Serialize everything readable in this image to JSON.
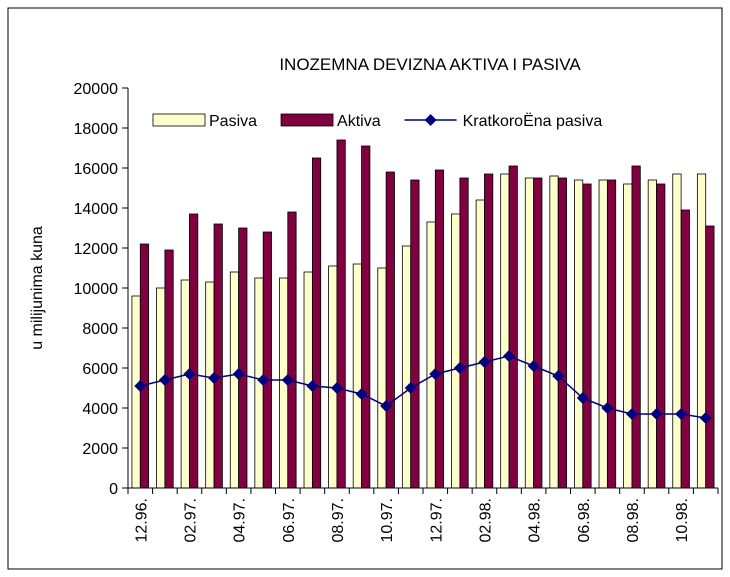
{
  "chart_data": {
    "type": "bar_line",
    "title": "INOZEMNA DEVIZNA AKTIVA I PASIVA",
    "y_label": "u milijunima kuna",
    "categories": [
      "12.96.",
      null,
      "02.97.",
      null,
      "04.97.",
      null,
      "06.97.",
      null,
      "08.97.",
      null,
      "10.97.",
      null,
      "12.97.",
      null,
      "02.98.",
      null,
      "04.98.",
      null,
      "06.98.",
      null,
      "08.98.",
      null,
      "10.98.",
      null
    ],
    "series": [
      {
        "name": "Pasiva",
        "kind": "bar",
        "color": "#ffffcc",
        "values": [
          9600,
          10000,
          10400,
          10300,
          10800,
          10500,
          10500,
          10800,
          11100,
          11200,
          11000,
          12100,
          13300,
          13700,
          14400,
          15700,
          15500,
          15600,
          15400,
          15400,
          15200,
          15400,
          15700,
          15700
        ]
      },
      {
        "name": "Aktiva",
        "kind": "bar",
        "color": "#800040",
        "values": [
          12200,
          11900,
          13700,
          13200,
          13000,
          12800,
          13800,
          16500,
          17400,
          17100,
          15800,
          15400,
          15900,
          15500,
          15700,
          16100,
          15500,
          15500,
          15200,
          15400,
          16100,
          15200,
          13900,
          13100
        ]
      },
      {
        "name": "KratkoroËna pasiva",
        "kind": "line",
        "color": "#000080",
        "values": [
          5100,
          5400,
          5700,
          5500,
          5700,
          5400,
          5400,
          5100,
          5000,
          4700,
          4100,
          5000,
          5700,
          6000,
          6300,
          6600,
          6100,
          5600,
          4500,
          4000,
          3700,
          3700,
          3700,
          3500
        ]
      }
    ],
    "ylim": [
      0,
      20000
    ],
    "yticks": [
      0,
      2000,
      4000,
      6000,
      8000,
      10000,
      12000,
      14000,
      16000,
      18000,
      20000
    ],
    "grid": false,
    "legend": "top"
  }
}
